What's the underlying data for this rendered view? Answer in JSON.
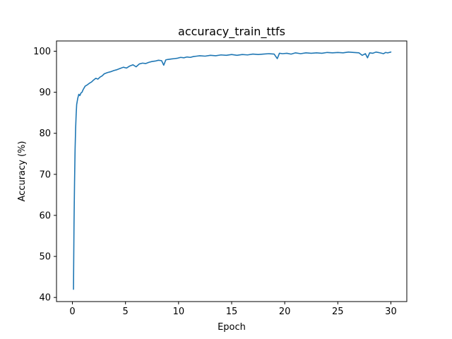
{
  "chart_data": {
    "type": "line",
    "title": "accuracy_train_ttfs",
    "xlabel": "Epoch",
    "ylabel": "Accuracy (%)",
    "xlim": [
      -1.5,
      31.5
    ],
    "ylim": [
      39,
      102.5
    ],
    "xticks": [
      0,
      5,
      10,
      15,
      20,
      25,
      30
    ],
    "yticks": [
      40,
      50,
      60,
      70,
      80,
      90,
      100
    ],
    "grid": false,
    "series": [
      {
        "color": "#1f77b4",
        "x": [
          0.1,
          0.15,
          0.2,
          0.25,
          0.3,
          0.35,
          0.4,
          0.5,
          0.6,
          0.7,
          0.8,
          0.9,
          1.0,
          1.2,
          1.4,
          1.6,
          1.8,
          2.0,
          2.2,
          2.4,
          2.6,
          2.8,
          3.0,
          3.3,
          3.6,
          3.9,
          4.2,
          4.5,
          4.8,
          5.1,
          5.4,
          5.7,
          6.0,
          6.3,
          6.6,
          6.9,
          7.2,
          7.5,
          7.8,
          8.1,
          8.4,
          8.6,
          8.8,
          9.0,
          9.3,
          9.6,
          9.9,
          10.2,
          10.5,
          10.8,
          11.1,
          11.4,
          11.7,
          12.0,
          12.5,
          13.0,
          13.5,
          14.0,
          14.5,
          15.0,
          15.5,
          16.0,
          16.5,
          17.0,
          17.5,
          18.0,
          18.5,
          19.0,
          19.3,
          19.5,
          19.8,
          20.2,
          20.6,
          21.0,
          21.5,
          22.0,
          22.5,
          23.0,
          23.5,
          24.0,
          24.5,
          25.0,
          25.5,
          26.0,
          26.5,
          27.0,
          27.3,
          27.6,
          27.8,
          28.0,
          28.3,
          28.6,
          29.0,
          29.3,
          29.5,
          29.7,
          30.0
        ],
        "y": [
          42.0,
          58.0,
          68.0,
          76.0,
          81.0,
          84.5,
          87.0,
          88.5,
          89.5,
          89.2,
          89.8,
          90.0,
          90.6,
          91.5,
          91.8,
          92.2,
          92.5,
          93.0,
          93.4,
          93.2,
          93.7,
          94.0,
          94.5,
          94.8,
          95.0,
          95.3,
          95.5,
          95.8,
          96.1,
          95.9,
          96.4,
          96.7,
          96.2,
          96.9,
          97.1,
          97.0,
          97.3,
          97.5,
          97.6,
          97.8,
          97.7,
          96.6,
          97.9,
          98.0,
          98.1,
          98.2,
          98.3,
          98.5,
          98.4,
          98.6,
          98.5,
          98.7,
          98.8,
          98.9,
          98.8,
          99.0,
          98.9,
          99.1,
          99.0,
          99.2,
          99.0,
          99.2,
          99.1,
          99.3,
          99.2,
          99.3,
          99.4,
          99.3,
          98.2,
          99.5,
          99.4,
          99.5,
          99.3,
          99.6,
          99.4,
          99.6,
          99.5,
          99.6,
          99.5,
          99.7,
          99.6,
          99.7,
          99.6,
          99.8,
          99.7,
          99.6,
          99.0,
          99.4,
          98.4,
          99.6,
          99.5,
          99.8,
          99.6,
          99.4,
          99.7,
          99.6,
          99.8
        ]
      }
    ]
  }
}
